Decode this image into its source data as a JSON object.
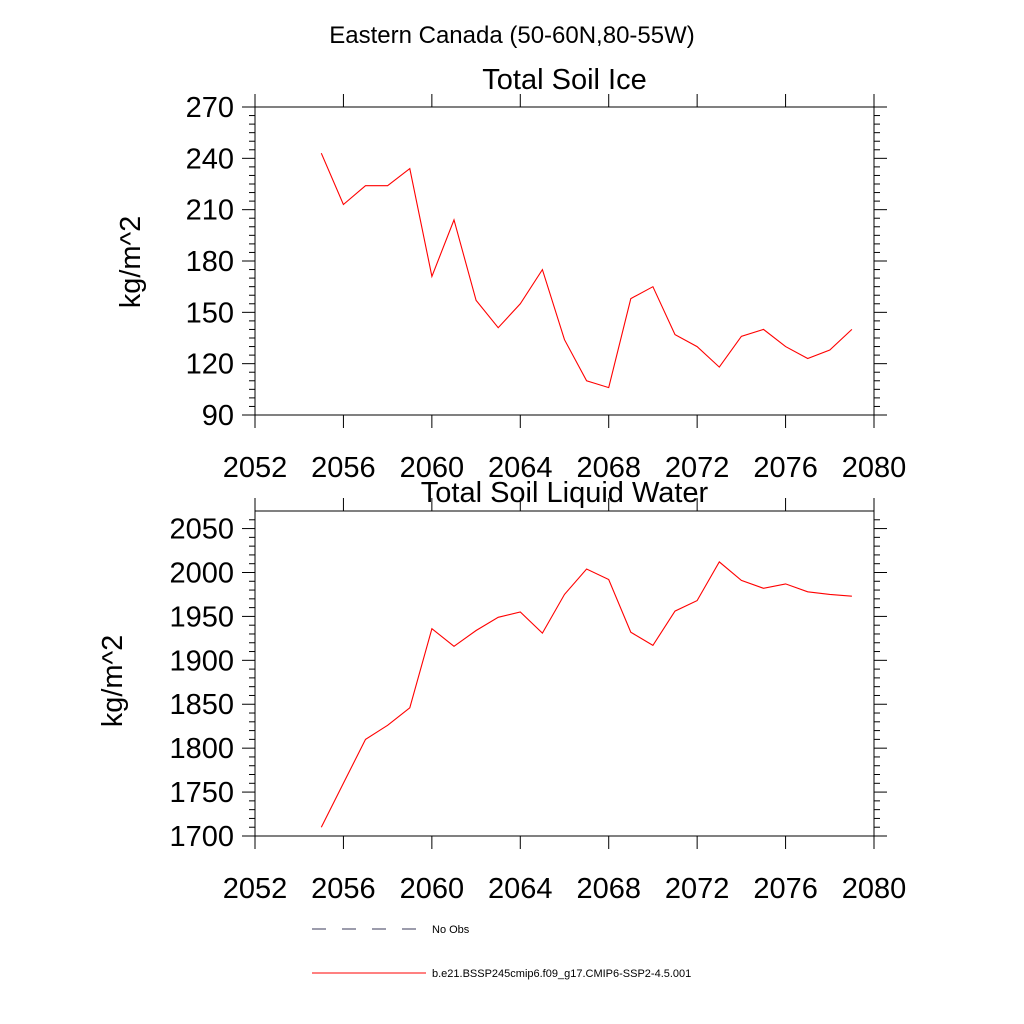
{
  "figure": {
    "title": "Eastern Canada (50-60N,80-55W)"
  },
  "chart_data": [
    {
      "type": "line",
      "title": "Total Soil Ice",
      "ylabel": "kg/m^2",
      "xlabel": "",
      "xlim": [
        2052,
        2080
      ],
      "ylim": [
        90,
        270
      ],
      "xticks": [
        "2052",
        "2056",
        "2060",
        "2064",
        "2068",
        "2072",
        "2076",
        "2080"
      ],
      "yticks": [
        "90",
        "120",
        "150",
        "180",
        "210",
        "240",
        "270"
      ],
      "grid": false,
      "series": [
        {
          "name": "b.e21.BSSP245cmip6.f09_g17.CMIP6-SSP2-4.5.001",
          "color": "#ff0000",
          "x": [
            2055,
            2056,
            2057,
            2058,
            2059,
            2060,
            2061,
            2062,
            2063,
            2064,
            2065,
            2066,
            2067,
            2068,
            2069,
            2070,
            2071,
            2072,
            2073,
            2074,
            2075,
            2076,
            2077,
            2078,
            2079
          ],
          "y": [
            243,
            213,
            224,
            224,
            234,
            171,
            204,
            157,
            141,
            155,
            175,
            134,
            110,
            106,
            158,
            165,
            137,
            130,
            118,
            136,
            140,
            130,
            123,
            128,
            140
          ]
        }
      ]
    },
    {
      "type": "line",
      "title": "Total Soil Liquid Water",
      "ylabel": "kg/m^2",
      "xlabel": "",
      "xlim": [
        2052,
        2080
      ],
      "ylim": [
        1700,
        2070
      ],
      "xticks": [
        "2052",
        "2056",
        "2060",
        "2064",
        "2068",
        "2072",
        "2076",
        "2080"
      ],
      "yticks": [
        "1700",
        "1750",
        "1800",
        "1850",
        "1900",
        "1950",
        "2000",
        "2050"
      ],
      "grid": false,
      "series": [
        {
          "name": "b.e21.BSSP245cmip6.f09_g17.CMIP6-SSP2-4.5.001",
          "color": "#ff0000",
          "x": [
            2055,
            2056,
            2057,
            2058,
            2059,
            2060,
            2061,
            2062,
            2063,
            2064,
            2065,
            2066,
            2067,
            2068,
            2069,
            2070,
            2071,
            2072,
            2073,
            2074,
            2075,
            2076,
            2077,
            2078,
            2079
          ],
          "y": [
            1710,
            1760,
            1810,
            1826,
            1846,
            1936,
            1916,
            1934,
            1949,
            1955,
            1931,
            1975,
            2004,
            1992,
            1932,
            1917,
            1956,
            1968,
            2012,
            1991,
            1982,
            1987,
            1978,
            1975,
            1973
          ]
        }
      ]
    }
  ],
  "legend": {
    "placement": "bottom",
    "items": [
      {
        "label": "No Obs",
        "color": "#3a3a5a",
        "style": "dashed"
      },
      {
        "label": "b.e21.BSSP245cmip6.f09_g17.CMIP6-SSP2-4.5.001",
        "color": "#ff0000",
        "style": "solid"
      }
    ]
  }
}
